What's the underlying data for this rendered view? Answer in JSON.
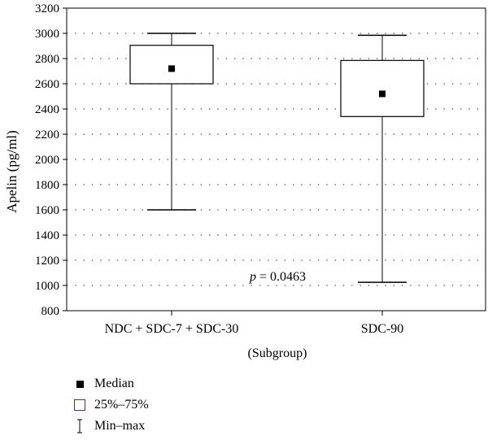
{
  "chart_data": {
    "type": "box",
    "ylabel": "Apelin (pg/ml)",
    "xlabel": "(Subgroup)",
    "ylim": [
      800,
      3200
    ],
    "yticks": [
      800,
      1000,
      1200,
      1400,
      1600,
      1800,
      2000,
      2200,
      2400,
      2600,
      2800,
      3000,
      3200
    ],
    "grid": "dotted-horizontal",
    "categories": [
      "NDC + SDC-7 + SDC-30",
      "SDC-90"
    ],
    "boxes": [
      {
        "category": "NDC + SDC-7 + SDC-30",
        "min": 1600,
        "q1": 2600,
        "median": 2720,
        "q3": 2905,
        "max": 3000
      },
      {
        "category": "SDC-90",
        "min": 1025,
        "q1": 2340,
        "median": 2520,
        "q3": 2785,
        "max": 2985
      }
    ],
    "annotation": {
      "label": "p",
      "text": " = 0.0463"
    },
    "legend": [
      {
        "symbol": "filled-square",
        "label": "Median"
      },
      {
        "symbol": "open-square",
        "label": "25%–75%"
      },
      {
        "symbol": "whisker",
        "label": "Min–max"
      }
    ]
  }
}
